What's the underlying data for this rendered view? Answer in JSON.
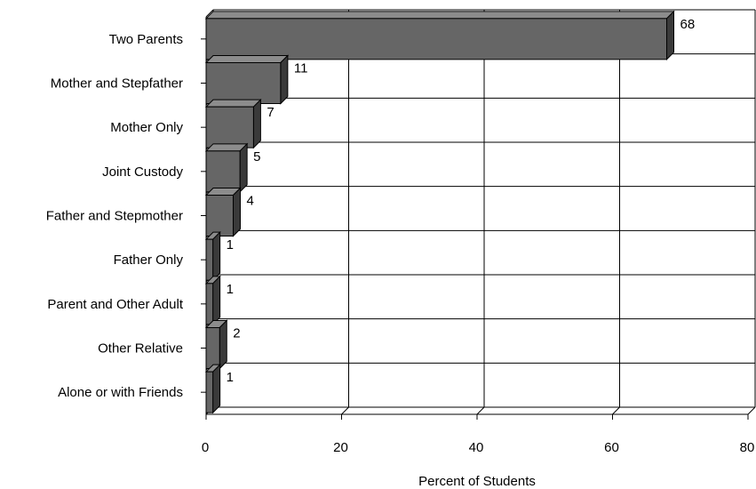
{
  "chart_data": {
    "type": "bar",
    "orientation": "horizontal",
    "style": "3d",
    "categories": [
      "Two Parents",
      "Mother and Stepfather",
      "Mother Only",
      "Joint Custody",
      "Father and Stepmother",
      "Father Only",
      "Parent and Other Adult",
      "Other Relative",
      "Alone or with Friends"
    ],
    "values": [
      68,
      11,
      7,
      5,
      4,
      1,
      1,
      2,
      1
    ],
    "data_labels": [
      "68",
      "11",
      "7",
      "5",
      "4",
      "1",
      "1",
      "2",
      "1"
    ],
    "title": "",
    "xlabel": "Percent of Students",
    "ylabel": "",
    "xlim": [
      0,
      80
    ],
    "xticks": [
      0,
      20,
      40,
      60,
      80
    ],
    "xtick_labels": [
      "0",
      "20",
      "40",
      "60",
      "80"
    ],
    "grid": "vertical gridlines at each x tick, horizontal lines between categories",
    "legend": "none",
    "colors": {
      "bar_front": "#666666",
      "bar_top": "#8c8c8c",
      "bar_side": "#3a3a3a",
      "bar_edge": "#000000",
      "grid": "#000000",
      "background": "#ffffff"
    }
  }
}
